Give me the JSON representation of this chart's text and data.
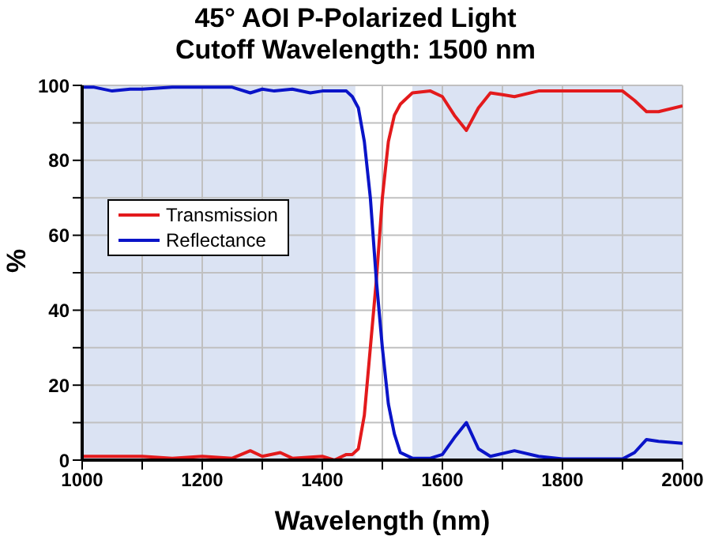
{
  "chart_data": {
    "type": "line",
    "title": "45° AOI P-Polarized Light",
    "subtitle": "Cutoff Wavelength: 1500 nm",
    "xlabel": "Wavelength (nm)",
    "ylabel": "%",
    "xlim": [
      1000,
      2000
    ],
    "ylim": [
      0,
      100
    ],
    "xticks": [
      1000,
      {
        "value": 1100,
        "label": null
      },
      1200,
      {
        "value": 1300,
        "label": null
      },
      1400,
      {
        "value": 1500,
        "label": null
      },
      1600,
      {
        "value": 1700,
        "label": null
      },
      1800,
      {
        "value": 1900,
        "label": null
      },
      2000
    ],
    "yticks": [
      0,
      {
        "value": 10,
        "label": null
      },
      20,
      {
        "value": 30,
        "label": null
      },
      40,
      {
        "value": 50,
        "label": null
      },
      60,
      {
        "value": 70,
        "label": null
      },
      80,
      {
        "value": 90,
        "label": null
      },
      100
    ],
    "grid": true,
    "legend": "left",
    "line_style": "solid",
    "marker": "none",
    "bands": [
      {
        "axis": "x",
        "from": 1000,
        "to": 1455,
        "color": "#dbe3f3"
      },
      {
        "axis": "x",
        "from": 1550,
        "to": 2000,
        "color": "#dbe3f3"
      }
    ],
    "series": [
      {
        "name": "Transmission",
        "color": "#e31a1c",
        "x": [
          1000,
          1050,
          1100,
          1150,
          1200,
          1250,
          1280,
          1300,
          1330,
          1350,
          1400,
          1420,
          1440,
          1450,
          1460,
          1470,
          1480,
          1490,
          1500,
          1510,
          1520,
          1530,
          1550,
          1580,
          1600,
          1620,
          1640,
          1660,
          1680,
          1700,
          1720,
          1760,
          1800,
          1900,
          1920,
          1940,
          1960,
          2000
        ],
        "values": [
          1,
          1,
          1,
          0.5,
          1,
          0.5,
          2.5,
          1,
          2,
          0.5,
          1,
          0,
          1.5,
          1.5,
          3,
          12,
          30,
          48,
          70,
          85,
          92,
          95,
          98,
          98.5,
          97,
          92,
          88,
          94,
          98,
          97.5,
          97,
          98.5,
          98.5,
          98.5,
          96,
          93,
          93,
          94.5
        ]
      },
      {
        "name": "Reflectance",
        "color": "#0a14c8",
        "x": [
          1000,
          1020,
          1050,
          1080,
          1100,
          1150,
          1200,
          1250,
          1280,
          1300,
          1320,
          1350,
          1380,
          1400,
          1420,
          1440,
          1450,
          1460,
          1470,
          1480,
          1490,
          1500,
          1510,
          1520,
          1530,
          1550,
          1580,
          1600,
          1620,
          1640,
          1660,
          1680,
          1720,
          1760,
          1800,
          1900,
          1920,
          1940,
          1960,
          2000
        ],
        "values": [
          99.5,
          99.5,
          98.5,
          99,
          99,
          99.5,
          99.5,
          99.5,
          98,
          99,
          98.5,
          99,
          98,
          98.5,
          98.5,
          98.5,
          97,
          94,
          85,
          70,
          48,
          30,
          15,
          7,
          2,
          0.5,
          0.5,
          1.5,
          6,
          10,
          3,
          1,
          2.5,
          1,
          0.3,
          0.3,
          2,
          5.5,
          5,
          4.5
        ]
      }
    ]
  }
}
